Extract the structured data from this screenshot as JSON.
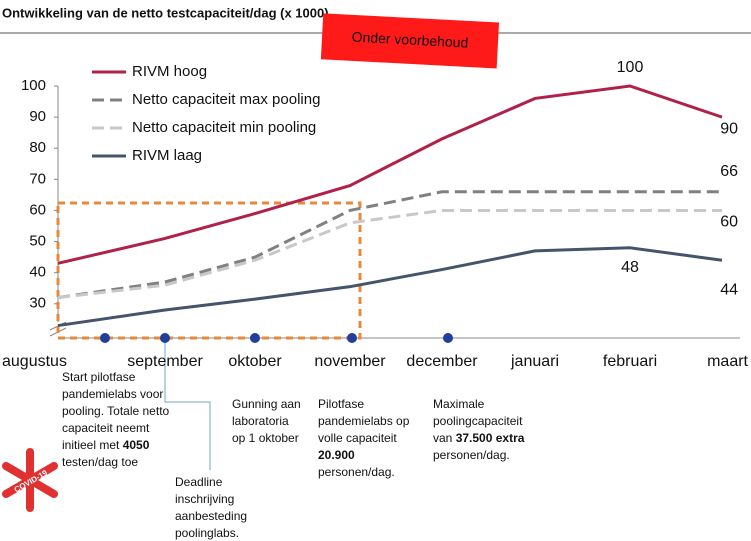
{
  "chart_data": {
    "type": "line",
    "title": "Ontwikkeling van de netto testcapaciteit/dag (x 1000)",
    "stamp": "Onder voorbehoud",
    "logo_text": "COVID-19",
    "categories": [
      "augustus",
      "september",
      "oktober",
      "november",
      "december",
      "januari",
      "februari",
      "maart"
    ],
    "ylim": [
      19,
      100
    ],
    "yticks": [
      30,
      40,
      50,
      60,
      70,
      80,
      90,
      100
    ],
    "legend": "top-left",
    "series": [
      {
        "name": "RIVM hoog",
        "color": "#b0204a",
        "dash": "solid",
        "values": [
          43,
          51,
          59,
          68,
          83,
          96,
          100,
          90
        ],
        "value_labels": [
          null,
          null,
          null,
          null,
          null,
          null,
          "100",
          "90"
        ]
      },
      {
        "name": "Netto capaciteit max pooling",
        "color": "#808080",
        "dash": "dashed",
        "values": [
          32,
          37,
          45,
          60,
          66,
          66,
          66,
          66
        ],
        "value_labels": [
          null,
          null,
          null,
          null,
          null,
          null,
          null,
          "66"
        ]
      },
      {
        "name": "Netto capaciteit min pooling",
        "color": "#c8c8c8",
        "dash": "dashed",
        "values": [
          32,
          36,
          44,
          56,
          60,
          60,
          60,
          60
        ],
        "value_labels": [
          null,
          null,
          null,
          null,
          null,
          null,
          null,
          "60"
        ]
      },
      {
        "name": "RIVM laag",
        "color": "#44546a",
        "dash": "solid",
        "values": [
          23,
          28,
          31.5,
          35.5,
          41,
          47,
          48,
          44
        ],
        "value_labels": [
          null,
          null,
          null,
          null,
          null,
          null,
          "48",
          "44"
        ]
      }
    ],
    "annotations": [
      {
        "lines": [
          [
            "Start pilotfase"
          ],
          [
            "pandemielabs voor"
          ],
          [
            "pooling. Totale netto"
          ],
          [
            "capaciteit neemt"
          ],
          [
            "initieel met ",
            {
              "text": "4050",
              "bold": true
            }
          ],
          [
            "testen/dag toe"
          ]
        ]
      },
      {
        "lines": [
          [
            "Deadline"
          ],
          [
            "inschrijving"
          ],
          [
            "aanbesteding"
          ],
          [
            "poolinglabs."
          ]
        ]
      },
      {
        "lines": [
          [
            "Gunning aan"
          ],
          [
            "laboratoria"
          ],
          [
            "op 1 oktober"
          ]
        ]
      },
      {
        "lines": [
          [
            "Pilotfase"
          ],
          [
            "pandemielabs op"
          ],
          [
            "volle capaciteit"
          ],
          [
            {
              "text": "20.900",
              "bold": true
            }
          ],
          [
            "personen/dag."
          ]
        ]
      },
      {
        "lines": [
          [
            "Maximale"
          ],
          [
            "poolingcapaciteit"
          ],
          [
            "van ",
            {
              "text": "37.500 extra",
              "bold": true
            }
          ],
          [
            "personen/dag."
          ]
        ]
      }
    ]
  }
}
